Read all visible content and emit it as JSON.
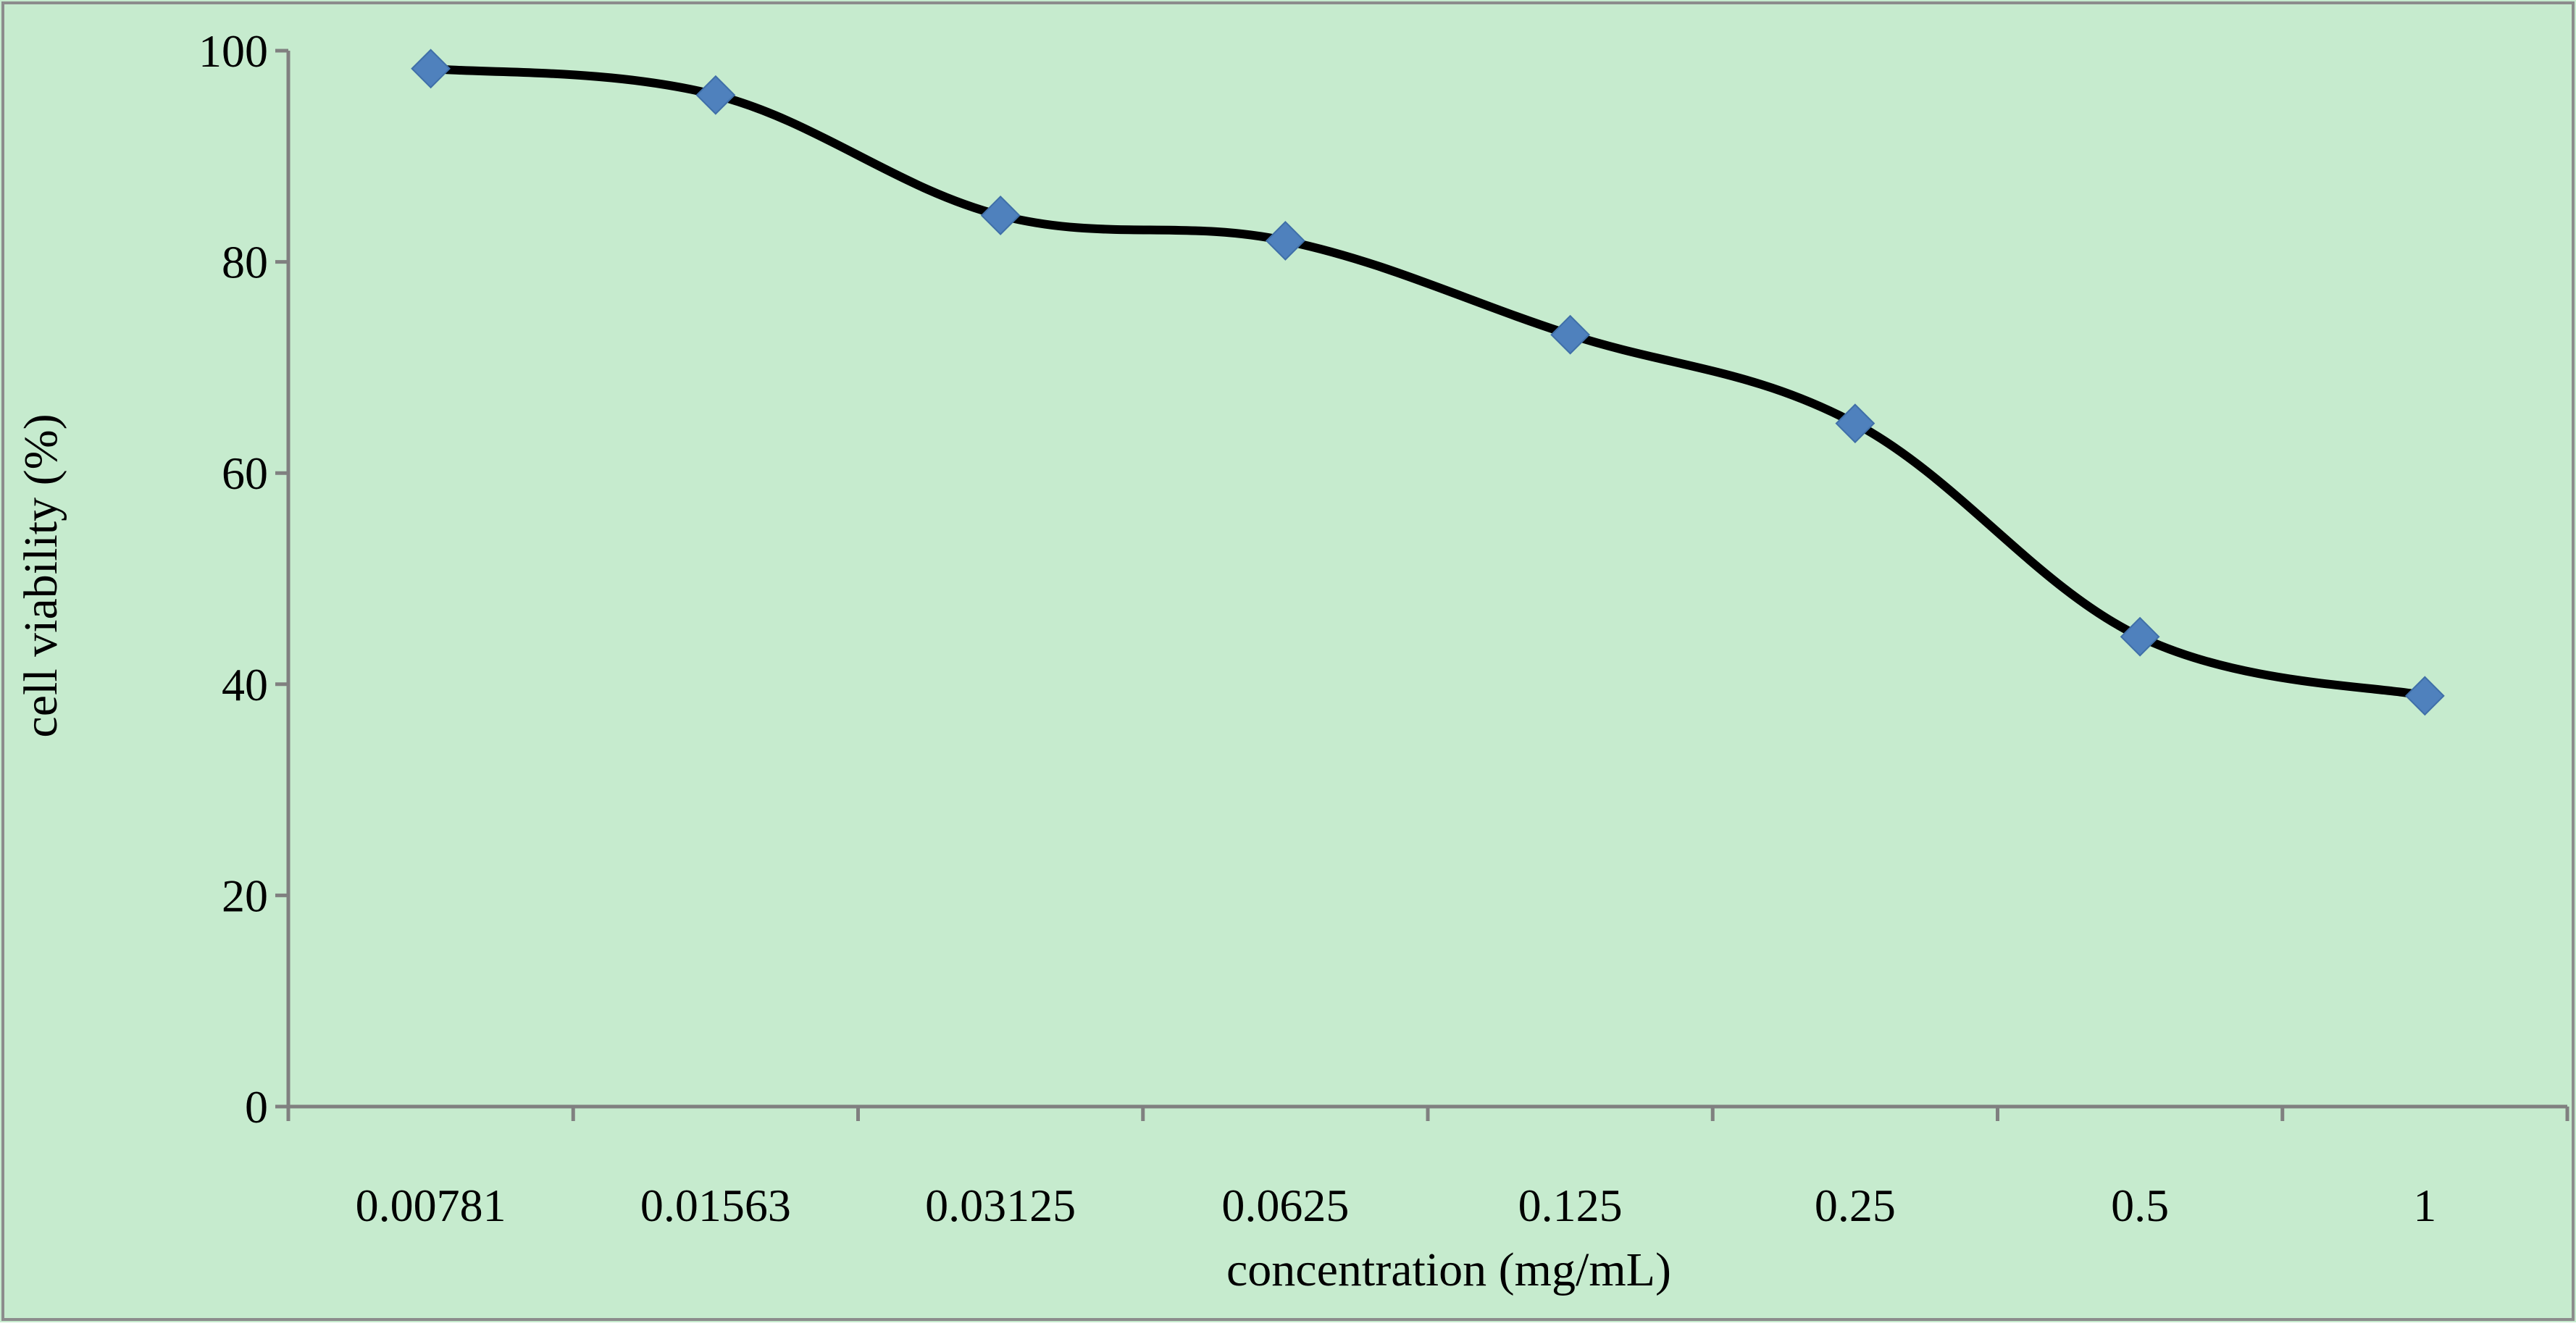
{
  "chart_data": {
    "type": "line",
    "title": "",
    "xlabel": "concentration (mg/mL)",
    "ylabel": "cell viability (%)",
    "categories": [
      "0.00781",
      "0.01563",
      "0.03125",
      "0.0625",
      "0.125",
      "0.25",
      "0.5",
      "1"
    ],
    "series": [
      {
        "values": [
          98.3,
          95.8,
          84.4,
          82.0,
          73.1,
          64.7,
          44.5,
          38.9
        ],
        "line_color": "#000000",
        "marker": "diamond",
        "marker_color": "#4F81BD",
        "smooth": true
      }
    ],
    "ylim": [
      0,
      100
    ],
    "yticks": [
      0,
      20,
      40,
      60,
      80,
      100
    ],
    "grid": false,
    "legend": "none",
    "plot_background": "#C6EBCE",
    "axis_color": "#808080"
  }
}
